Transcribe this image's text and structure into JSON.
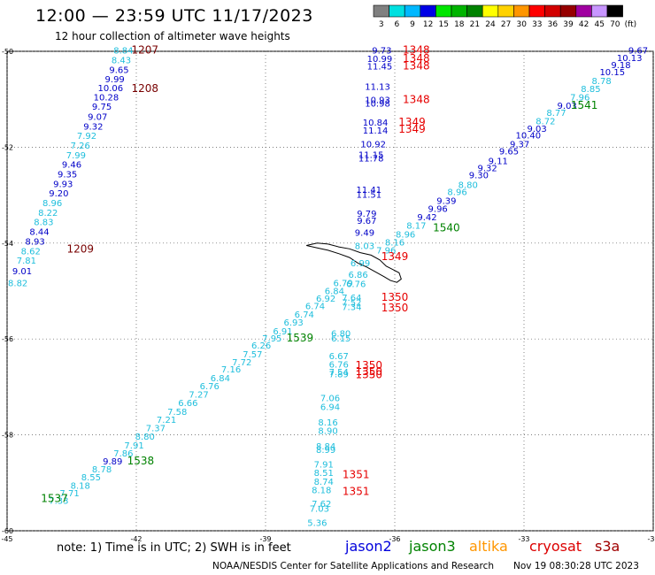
{
  "header": {
    "title": "12:00 — 23:59 UTC 11/17/2023",
    "subtitle": "12 hour collection of altimeter wave heights"
  },
  "colorbar": {
    "unit": "(ft)",
    "bins": [
      {
        "label": "3",
        "color": "#808080"
      },
      {
        "label": "6",
        "color": "#00e0e0"
      },
      {
        "label": "9",
        "color": "#00b8ff"
      },
      {
        "label": "12",
        "color": "#0000e6"
      },
      {
        "label": "15",
        "color": "#00e600"
      },
      {
        "label": "18",
        "color": "#00b400"
      },
      {
        "label": "21",
        "color": "#008200"
      },
      {
        "label": "24",
        "color": "#ffff00"
      },
      {
        "label": "27",
        "color": "#ffd200"
      },
      {
        "label": "30",
        "color": "#ff9600"
      },
      {
        "label": "33",
        "color": "#ff0000"
      },
      {
        "label": "36",
        "color": "#d20000"
      },
      {
        "label": "39",
        "color": "#960000"
      },
      {
        "label": "42",
        "color": "#a000a0"
      },
      {
        "label": "45",
        "color": "#c896ff"
      },
      {
        "label": "70",
        "color": "#000000"
      }
    ]
  },
  "axes": {
    "lon_range": [
      -45,
      -30
    ],
    "lat_range": [
      -60,
      -50
    ],
    "x_ticks": [
      {
        "value": -45,
        "label": "-45"
      },
      {
        "value": -42,
        "label": "-42"
      },
      {
        "value": -39,
        "label": "-39"
      },
      {
        "value": -36,
        "label": "-36"
      },
      {
        "value": -33,
        "label": "-33"
      },
      {
        "value": -30,
        "label": "-30"
      }
    ],
    "y_ticks": [
      {
        "value": -50,
        "label": "-50"
      },
      {
        "value": -52,
        "label": "-52"
      },
      {
        "value": -54,
        "label": "-54"
      },
      {
        "value": -56,
        "label": "-56"
      },
      {
        "value": -58,
        "label": "-58"
      },
      {
        "value": -60,
        "label": "-60"
      }
    ]
  },
  "colors": {
    "light_values": "#1ebedc",
    "dark_values": "#0000c8",
    "jason2": "#0000dc",
    "jason3": "#008200",
    "altika": "#ff9600",
    "cryosat": "#dc0000",
    "s3a": "#a00000",
    "pass_red": "#e60000",
    "pass_dark": "#780000",
    "pass_green": "#008200"
  },
  "observations": [
    {
      "lon": -42.3,
      "lat": -50.05,
      "value": "8.84",
      "tone": "light"
    },
    {
      "lon": -42.35,
      "lat": -50.25,
      "value": "8.43",
      "tone": "light"
    },
    {
      "lon": -42.4,
      "lat": -50.45,
      "value": "9.65",
      "tone": "dark"
    },
    {
      "lon": -42.5,
      "lat": -50.65,
      "value": "9.99",
      "tone": "dark"
    },
    {
      "lon": -42.6,
      "lat": -50.83,
      "value": "10.06",
      "tone": "dark"
    },
    {
      "lon": -42.7,
      "lat": -51.02,
      "value": "10.28",
      "tone": "dark"
    },
    {
      "lon": -42.8,
      "lat": -51.22,
      "value": "9.75",
      "tone": "dark"
    },
    {
      "lon": -42.9,
      "lat": -51.43,
      "value": "9.07",
      "tone": "dark"
    },
    {
      "lon": -43.0,
      "lat": -51.63,
      "value": "9.32",
      "tone": "dark"
    },
    {
      "lon": -43.15,
      "lat": -51.83,
      "value": "7.92",
      "tone": "light"
    },
    {
      "lon": -43.3,
      "lat": -52.03,
      "value": "7.26",
      "tone": "light"
    },
    {
      "lon": -43.4,
      "lat": -52.23,
      "value": "7.99",
      "tone": "light"
    },
    {
      "lon": -43.5,
      "lat": -52.43,
      "value": "9.46",
      "tone": "dark"
    },
    {
      "lon": -43.6,
      "lat": -52.63,
      "value": "9.35",
      "tone": "dark"
    },
    {
      "lon": -43.7,
      "lat": -52.83,
      "value": "9.93",
      "tone": "dark"
    },
    {
      "lon": -43.8,
      "lat": -53.03,
      "value": "9.20",
      "tone": "dark"
    },
    {
      "lon": -43.95,
      "lat": -53.23,
      "value": "8.96",
      "tone": "light"
    },
    {
      "lon": -44.05,
      "lat": -53.43,
      "value": "8.22",
      "tone": "light"
    },
    {
      "lon": -44.15,
      "lat": -53.63,
      "value": "8.83",
      "tone": "light"
    },
    {
      "lon": -44.25,
      "lat": -53.83,
      "value": "8.44",
      "tone": "dark"
    },
    {
      "lon": -44.35,
      "lat": -54.03,
      "value": "8.93",
      "tone": "dark"
    },
    {
      "lon": -44.45,
      "lat": -54.23,
      "value": "8.62",
      "tone": "light"
    },
    {
      "lon": -44.55,
      "lat": -54.43,
      "value": "7.81",
      "tone": "light"
    },
    {
      "lon": -44.65,
      "lat": -54.65,
      "value": "9.01",
      "tone": "dark"
    },
    {
      "lon": -44.75,
      "lat": -54.9,
      "value": "8.82",
      "tone": "light"
    },
    {
      "lon": -36.3,
      "lat": -50.05,
      "value": "9.73",
      "tone": "dark"
    },
    {
      "lon": -36.35,
      "lat": -50.22,
      "value": "10.99",
      "tone": "dark"
    },
    {
      "lon": -36.35,
      "lat": -50.38,
      "value": "11.45",
      "tone": "dark"
    },
    {
      "lon": -36.4,
      "lat": -50.8,
      "value": "11.13",
      "tone": "dark"
    },
    {
      "lon": -36.4,
      "lat": -51.08,
      "value": "10.93",
      "tone": "dark"
    },
    {
      "lon": -36.4,
      "lat": -51.15,
      "value": "10.98",
      "tone": "dark"
    },
    {
      "lon": -36.45,
      "lat": -51.55,
      "value": "10.84",
      "tone": "dark"
    },
    {
      "lon": -36.45,
      "lat": -51.72,
      "value": "11.14",
      "tone": "dark"
    },
    {
      "lon": -36.5,
      "lat": -52.0,
      "value": "10.92",
      "tone": "dark"
    },
    {
      "lon": -36.55,
      "lat": -52.22,
      "value": "11.15",
      "tone": "dark"
    },
    {
      "lon": -36.55,
      "lat": -52.3,
      "value": "11.78",
      "tone": "dark"
    },
    {
      "lon": -36.6,
      "lat": -52.95,
      "value": "11.41",
      "tone": "dark"
    },
    {
      "lon": -36.6,
      "lat": -53.05,
      "value": "11.51",
      "tone": "dark"
    },
    {
      "lon": -36.65,
      "lat": -53.45,
      "value": "9.79",
      "tone": "dark"
    },
    {
      "lon": -36.65,
      "lat": -53.6,
      "value": "9.67",
      "tone": "dark"
    },
    {
      "lon": -36.7,
      "lat": -53.85,
      "value": "9.49",
      "tone": "dark"
    },
    {
      "lon": -36.7,
      "lat": -54.12,
      "value": "8.03",
      "tone": "light"
    },
    {
      "lon": -36.8,
      "lat": -54.48,
      "value": "6.99",
      "tone": "light"
    },
    {
      "lon": -36.85,
      "lat": -54.72,
      "value": "6.86",
      "tone": "light"
    },
    {
      "lon": -36.9,
      "lat": -54.92,
      "value": "6.76",
      "tone": "light"
    },
    {
      "lon": -37.0,
      "lat": -55.2,
      "value": "7.64",
      "tone": "light"
    },
    {
      "lon": -37.0,
      "lat": -55.3,
      "value": "7.52",
      "tone": "light"
    },
    {
      "lon": -37.0,
      "lat": -55.4,
      "value": "7.34",
      "tone": "light"
    },
    {
      "lon": -37.25,
      "lat": -55.95,
      "value": "6.80",
      "tone": "light"
    },
    {
      "lon": -37.25,
      "lat": -56.05,
      "value": "6.15",
      "tone": "light"
    },
    {
      "lon": -37.3,
      "lat": -56.42,
      "value": "6.67",
      "tone": "light"
    },
    {
      "lon": -37.3,
      "lat": -56.6,
      "value": "6.76",
      "tone": "light"
    },
    {
      "lon": -37.3,
      "lat": -56.75,
      "value": "7.54",
      "tone": "light"
    },
    {
      "lon": -37.3,
      "lat": -56.8,
      "value": "7.89",
      "tone": "light"
    },
    {
      "lon": -37.5,
      "lat": -57.3,
      "value": "7.06",
      "tone": "light"
    },
    {
      "lon": -37.5,
      "lat": -57.48,
      "value": "6.94",
      "tone": "light"
    },
    {
      "lon": -37.55,
      "lat": -57.8,
      "value": "8.16",
      "tone": "light"
    },
    {
      "lon": -37.55,
      "lat": -57.98,
      "value": "8.90",
      "tone": "light"
    },
    {
      "lon": -37.6,
      "lat": -58.3,
      "value": "8.84",
      "tone": "light"
    },
    {
      "lon": -37.6,
      "lat": -58.38,
      "value": "8.99",
      "tone": "light"
    },
    {
      "lon": -37.65,
      "lat": -58.68,
      "value": "7.91",
      "tone": "light"
    },
    {
      "lon": -37.65,
      "lat": -58.86,
      "value": "8.51",
      "tone": "light"
    },
    {
      "lon": -37.65,
      "lat": -59.04,
      "value": "8.74",
      "tone": "light"
    },
    {
      "lon": -37.7,
      "lat": -59.22,
      "value": "8.18",
      "tone": "light"
    },
    {
      "lon": -37.7,
      "lat": -59.5,
      "value": "7.62",
      "tone": "light"
    },
    {
      "lon": -37.75,
      "lat": -59.6,
      "value": "7.03",
      "tone": "light"
    },
    {
      "lon": -37.8,
      "lat": -59.9,
      "value": "5.36",
      "tone": "light"
    },
    {
      "lon": -30.35,
      "lat": -50.05,
      "value": "9.67",
      "tone": "dark"
    },
    {
      "lon": -30.55,
      "lat": -50.2,
      "value": "10.13",
      "tone": "dark"
    },
    {
      "lon": -30.75,
      "lat": -50.35,
      "value": "9.18",
      "tone": "dark"
    },
    {
      "lon": -30.95,
      "lat": -50.5,
      "value": "10.15",
      "tone": "dark"
    },
    {
      "lon": -31.2,
      "lat": -50.68,
      "value": "8.78",
      "tone": "light"
    },
    {
      "lon": -31.45,
      "lat": -50.85,
      "value": "8.85",
      "tone": "light"
    },
    {
      "lon": -31.7,
      "lat": -51.02,
      "value": "7.96",
      "tone": "light"
    },
    {
      "lon": -32.0,
      "lat": -51.2,
      "value": "9.03",
      "tone": "dark"
    },
    {
      "lon": -32.25,
      "lat": -51.35,
      "value": "8.77",
      "tone": "light"
    },
    {
      "lon": -32.5,
      "lat": -51.52,
      "value": "8.72",
      "tone": "light"
    },
    {
      "lon": -32.7,
      "lat": -51.68,
      "value": "9.03",
      "tone": "dark"
    },
    {
      "lon": -32.9,
      "lat": -51.82,
      "value": "10.40",
      "tone": "dark"
    },
    {
      "lon": -33.1,
      "lat": -52.0,
      "value": "9.37",
      "tone": "dark"
    },
    {
      "lon": -33.35,
      "lat": -52.15,
      "value": "9.65",
      "tone": "dark"
    },
    {
      "lon": -33.6,
      "lat": -52.35,
      "value": "9.11",
      "tone": "dark"
    },
    {
      "lon": -33.85,
      "lat": -52.5,
      "value": "9.32",
      "tone": "dark"
    },
    {
      "lon": -34.05,
      "lat": -52.65,
      "value": "9.30",
      "tone": "dark"
    },
    {
      "lon": -34.3,
      "lat": -52.85,
      "value": "8.80",
      "tone": "light"
    },
    {
      "lon": -34.55,
      "lat": -53.0,
      "value": "8.96",
      "tone": "light"
    },
    {
      "lon": -34.8,
      "lat": -53.18,
      "value": "9.39",
      "tone": "dark"
    },
    {
      "lon": -35.0,
      "lat": -53.35,
      "value": "9.96",
      "tone": "dark"
    },
    {
      "lon": -35.25,
      "lat": -53.52,
      "value": "9.42",
      "tone": "dark"
    },
    {
      "lon": -35.5,
      "lat": -53.7,
      "value": "8.17",
      "tone": "light"
    },
    {
      "lon": -35.75,
      "lat": -53.88,
      "value": "8.96",
      "tone": "light"
    },
    {
      "lon": -36.0,
      "lat": -54.05,
      "value": "8.16",
      "tone": "light"
    },
    {
      "lon": -36.2,
      "lat": -54.22,
      "value": "7.96",
      "tone": "light"
    },
    {
      "lon": -37.2,
      "lat": -54.9,
      "value": "6.79",
      "tone": "light"
    },
    {
      "lon": -37.4,
      "lat": -55.06,
      "value": "6.84",
      "tone": "light"
    },
    {
      "lon": -37.6,
      "lat": -55.22,
      "value": "6.92",
      "tone": "light"
    },
    {
      "lon": -37.85,
      "lat": -55.38,
      "value": "6.74",
      "tone": "light"
    },
    {
      "lon": -38.1,
      "lat": -55.55,
      "value": "6.74",
      "tone": "light"
    },
    {
      "lon": -38.35,
      "lat": -55.72,
      "value": "6.93",
      "tone": "light"
    },
    {
      "lon": -38.6,
      "lat": -55.9,
      "value": "6.91",
      "tone": "light"
    },
    {
      "lon": -38.85,
      "lat": -56.05,
      "value": "7.95",
      "tone": "light"
    },
    {
      "lon": -39.1,
      "lat": -56.2,
      "value": "6.26",
      "tone": "light"
    },
    {
      "lon": -39.3,
      "lat": -56.38,
      "value": "7.57",
      "tone": "light"
    },
    {
      "lon": -39.55,
      "lat": -56.55,
      "value": "7.72",
      "tone": "light"
    },
    {
      "lon": -39.8,
      "lat": -56.7,
      "value": "7.16",
      "tone": "light"
    },
    {
      "lon": -40.05,
      "lat": -56.88,
      "value": "6.84",
      "tone": "light"
    },
    {
      "lon": -40.3,
      "lat": -57.05,
      "value": "6.76",
      "tone": "light"
    },
    {
      "lon": -40.55,
      "lat": -57.22,
      "value": "7.27",
      "tone": "light"
    },
    {
      "lon": -40.8,
      "lat": -57.4,
      "value": "6.66",
      "tone": "light"
    },
    {
      "lon": -41.05,
      "lat": -57.58,
      "value": "7.58",
      "tone": "light"
    },
    {
      "lon": -41.3,
      "lat": -57.75,
      "value": "7.21",
      "tone": "light"
    },
    {
      "lon": -41.55,
      "lat": -57.92,
      "value": "7.37",
      "tone": "light"
    },
    {
      "lon": -41.8,
      "lat": -58.1,
      "value": "8.80",
      "tone": "light"
    },
    {
      "lon": -42.05,
      "lat": -58.28,
      "value": "7.91",
      "tone": "light"
    },
    {
      "lon": -42.3,
      "lat": -58.45,
      "value": "7.86",
      "tone": "light"
    },
    {
      "lon": -42.55,
      "lat": -58.62,
      "value": "9.89",
      "tone": "dark"
    },
    {
      "lon": -42.8,
      "lat": -58.78,
      "value": "8.78",
      "tone": "light"
    },
    {
      "lon": -43.05,
      "lat": -58.95,
      "value": "8.55",
      "tone": "light"
    },
    {
      "lon": -43.3,
      "lat": -59.12,
      "value": "8.18",
      "tone": "light"
    },
    {
      "lon": -43.55,
      "lat": -59.28,
      "value": "7.71",
      "tone": "light"
    },
    {
      "lon": -43.8,
      "lat": -59.44,
      "value": "7.33",
      "tone": "light"
    }
  ],
  "pass_labels": [
    {
      "lon": -41.8,
      "lat": -50.05,
      "text": "1207",
      "tone": "pass_dark"
    },
    {
      "lon": -41.8,
      "lat": -50.85,
      "text": "1208",
      "tone": "pass_dark"
    },
    {
      "lon": -43.3,
      "lat": -54.2,
      "text": "1209",
      "tone": "pass_dark"
    },
    {
      "lon": -35.5,
      "lat": -50.05,
      "text": "1348",
      "tone": "pass_red"
    },
    {
      "lon": -35.5,
      "lat": -50.22,
      "text": "1348",
      "tone": "pass_red"
    },
    {
      "lon": -35.5,
      "lat": -50.38,
      "text": "1348",
      "tone": "pass_red"
    },
    {
      "lon": -35.5,
      "lat": -51.08,
      "text": "1348",
      "tone": "pass_red"
    },
    {
      "lon": -35.6,
      "lat": -51.55,
      "text": "1349",
      "tone": "pass_red"
    },
    {
      "lon": -35.6,
      "lat": -51.7,
      "text": "1349",
      "tone": "pass_red"
    },
    {
      "lon": -36.0,
      "lat": -54.35,
      "text": "1349",
      "tone": "pass_red"
    },
    {
      "lon": -36.0,
      "lat": -55.2,
      "text": "1350",
      "tone": "pass_red"
    },
    {
      "lon": -36.0,
      "lat": -55.42,
      "text": "1350",
      "tone": "pass_red"
    },
    {
      "lon": -36.6,
      "lat": -56.62,
      "text": "1350",
      "tone": "pass_red"
    },
    {
      "lon": -36.6,
      "lat": -56.75,
      "text": "1350",
      "tone": "pass_red"
    },
    {
      "lon": -36.6,
      "lat": -56.82,
      "text": "1350",
      "tone": "pass_red"
    },
    {
      "lon": -36.9,
      "lat": -58.9,
      "text": "1351",
      "tone": "pass_red"
    },
    {
      "lon": -36.9,
      "lat": -59.25,
      "text": "1351",
      "tone": "pass_red"
    },
    {
      "lon": -31.6,
      "lat": -51.2,
      "text": "1541",
      "tone": "pass_green"
    },
    {
      "lon": -34.8,
      "lat": -53.75,
      "text": "1540",
      "tone": "pass_green"
    },
    {
      "lon": -38.2,
      "lat": -56.05,
      "text": "1539",
      "tone": "pass_green"
    },
    {
      "lon": -41.9,
      "lat": -58.62,
      "text": "1538",
      "tone": "pass_green"
    },
    {
      "lon": -43.9,
      "lat": -59.4,
      "text": "1537",
      "tone": "pass_green"
    }
  ],
  "footer": {
    "note": "note: 1) Time is in UTC; 2) SWH is in feet",
    "missions": [
      {
        "label": "jason2",
        "tone": "jason2"
      },
      {
        "label": "jason3",
        "tone": "jason3"
      },
      {
        "label": "altika",
        "tone": "altika"
      },
      {
        "label": "cryosat",
        "tone": "cryosat"
      },
      {
        "label": "s3a",
        "tone": "s3a"
      }
    ],
    "credit": "NOAA/NESDIS Center for Satellite Applications and Research",
    "timestamp": "Nov 19 08:30:28 UTC 2023"
  }
}
